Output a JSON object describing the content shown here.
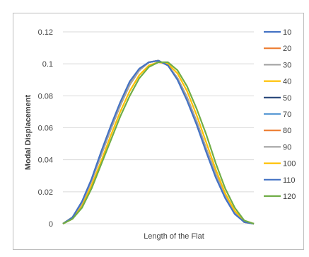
{
  "chart_data": {
    "type": "line",
    "title": "",
    "xlabel": "Length of the Flat",
    "ylabel": "Modal Displacement",
    "ylim": [
      0,
      0.12
    ],
    "yticks": [
      "0",
      "0.02",
      "0.04",
      "0.06",
      "0.08",
      "0.1",
      "0.12"
    ],
    "grid": true,
    "legend_position": "right",
    "x": [
      0,
      0.05,
      0.1,
      0.15,
      0.2,
      0.25,
      0.3,
      0.35,
      0.4,
      0.45,
      0.5,
      0.55,
      0.6,
      0.65,
      0.7,
      0.75,
      0.8,
      0.85,
      0.9,
      0.95,
      1.0
    ],
    "series": [
      {
        "name": "10",
        "color": "#4472C4",
        "values": [
          0,
          0.004,
          0.013,
          0.027,
          0.043,
          0.059,
          0.074,
          0.087,
          0.096,
          0.101,
          0.102,
          0.099,
          0.091,
          0.079,
          0.064,
          0.047,
          0.031,
          0.017,
          0.007,
          0.001,
          0
        ]
      },
      {
        "name": "20",
        "color": "#ED7D31",
        "values": [
          0,
          0.004,
          0.013,
          0.027,
          0.043,
          0.059,
          0.074,
          0.087,
          0.096,
          0.101,
          0.102,
          0.099,
          0.091,
          0.079,
          0.064,
          0.047,
          0.031,
          0.017,
          0.007,
          0.001,
          0
        ]
      },
      {
        "name": "30",
        "color": "#A5A5A5",
        "values": [
          0,
          0.004,
          0.013,
          0.027,
          0.043,
          0.059,
          0.074,
          0.087,
          0.096,
          0.101,
          0.102,
          0.099,
          0.091,
          0.079,
          0.064,
          0.047,
          0.031,
          0.017,
          0.007,
          0.001,
          0
        ]
      },
      {
        "name": "40",
        "color": "#FFC000",
        "values": [
          0,
          0.004,
          0.013,
          0.027,
          0.043,
          0.059,
          0.074,
          0.087,
          0.096,
          0.101,
          0.102,
          0.099,
          0.091,
          0.079,
          0.064,
          0.047,
          0.031,
          0.017,
          0.007,
          0.001,
          0
        ]
      },
      {
        "name": "50",
        "color": "#264478",
        "values": [
          0,
          0.004,
          0.013,
          0.027,
          0.043,
          0.059,
          0.074,
          0.087,
          0.096,
          0.101,
          0.102,
          0.099,
          0.091,
          0.079,
          0.064,
          0.047,
          0.031,
          0.017,
          0.007,
          0.001,
          0
        ]
      },
      {
        "name": "70",
        "color": "#5B9BD5",
        "values": [
          0,
          0.004,
          0.013,
          0.027,
          0.043,
          0.059,
          0.074,
          0.087,
          0.096,
          0.101,
          0.102,
          0.099,
          0.091,
          0.079,
          0.064,
          0.047,
          0.031,
          0.017,
          0.007,
          0.001,
          0
        ]
      },
      {
        "name": "80",
        "color": "#ED7D31",
        "values": [
          0,
          0.004,
          0.013,
          0.027,
          0.043,
          0.059,
          0.074,
          0.087,
          0.096,
          0.101,
          0.102,
          0.099,
          0.091,
          0.079,
          0.064,
          0.047,
          0.031,
          0.017,
          0.007,
          0.001,
          0
        ]
      },
      {
        "name": "90",
        "color": "#A5A5A5",
        "values": [
          0,
          0.004,
          0.013,
          0.027,
          0.043,
          0.059,
          0.074,
          0.087,
          0.096,
          0.101,
          0.102,
          0.099,
          0.091,
          0.079,
          0.064,
          0.047,
          0.031,
          0.017,
          0.007,
          0.001,
          0
        ]
      },
      {
        "name": "100",
        "color": "#FFC000",
        "values": [
          0,
          0.003,
          0.011,
          0.024,
          0.039,
          0.055,
          0.07,
          0.083,
          0.093,
          0.099,
          0.101,
          0.1,
          0.094,
          0.083,
          0.068,
          0.051,
          0.034,
          0.019,
          0.008,
          0.002,
          0
        ]
      },
      {
        "name": "110",
        "color": "#4472C4",
        "values": [
          0,
          0.004,
          0.014,
          0.028,
          0.045,
          0.061,
          0.076,
          0.089,
          0.097,
          0.101,
          0.102,
          0.099,
          0.09,
          0.077,
          0.062,
          0.045,
          0.029,
          0.016,
          0.006,
          0.001,
          0
        ]
      },
      {
        "name": "120",
        "color": "#70AD47",
        "values": [
          0,
          0.003,
          0.01,
          0.022,
          0.037,
          0.052,
          0.067,
          0.08,
          0.091,
          0.098,
          0.101,
          0.101,
          0.096,
          0.086,
          0.072,
          0.056,
          0.038,
          0.022,
          0.01,
          0.002,
          0
        ]
      }
    ]
  }
}
